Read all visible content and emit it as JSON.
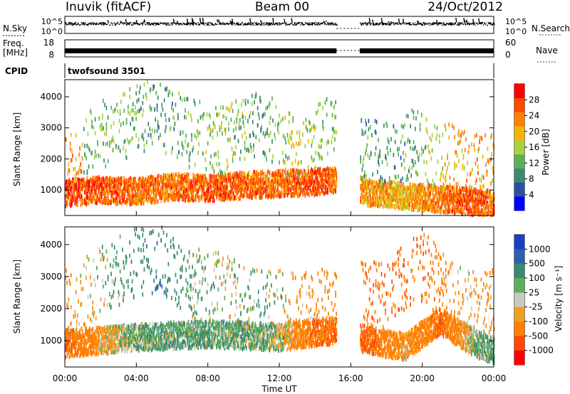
{
  "header": {
    "station": "Inuvik (fitACF)",
    "beam": "Beam 00",
    "date": "24/Oct/2012"
  },
  "strip_panels": {
    "nsky": {
      "label": "N.Sky",
      "left_ticks": [
        "10^5",
        "10^0"
      ],
      "right_label": "N.Search",
      "right_ticks": [
        "10^5",
        "10^0"
      ]
    },
    "freq": {
      "label_line1": "Freq.",
      "label_line2": "[MHz]",
      "left_ticks": [
        "18",
        "8"
      ],
      "right_label": "Nave",
      "right_ticks": [
        "60",
        "0"
      ]
    },
    "cpid": {
      "label": "CPID",
      "value": "twofsound 3501"
    }
  },
  "colors": {
    "power_scale": [
      "#0000ff",
      "#2a4fa3",
      "#3a8a6e",
      "#59b15a",
      "#a8d33c",
      "#f2b500",
      "#ff7f00",
      "#ff4a00",
      "#ff0000"
    ],
    "velocity_scale": [
      "#1a3fc4",
      "#2a5fb0",
      "#3a8a6e",
      "#59b15a",
      "#c8c8c0",
      "#f0a020",
      "#ff7f00",
      "#ff4a00",
      "#ff0000"
    ],
    "data_gap": "#ffffff"
  },
  "chart_data": [
    {
      "type": "heatmap",
      "panel": "power",
      "xlabel": "Time UT",
      "ylabel": "Slant Range [km]",
      "x_ticks": [
        "00:00",
        "04:00",
        "08:00",
        "12:00",
        "16:00",
        "20:00",
        "00:00"
      ],
      "y_ticks": [
        1000,
        2000,
        3000,
        4000
      ],
      "x_range_hours": [
        0,
        24
      ],
      "y_range_km": [
        180,
        4550
      ],
      "data_gap_hours": [
        15.2,
        16.5
      ],
      "colorbar": {
        "label": "Power [dB]",
        "ticks": [
          4,
          8,
          12,
          16,
          20,
          24,
          28
        ],
        "range": [
          0,
          32
        ]
      },
      "series": [
        {
          "name": "strong_band",
          "x": [
            0,
            2,
            4,
            6,
            8,
            10,
            12,
            14,
            15,
            17,
            19,
            21,
            23,
            24
          ],
          "y": [
            900,
            1000,
            950,
            1100,
            1050,
            1150,
            1200,
            1250,
            1300,
            900,
            800,
            700,
            600,
            550
          ],
          "value_db": [
            28,
            26,
            24,
            24,
            26,
            25,
            24,
            27,
            24,
            22,
            20,
            24,
            26,
            24
          ]
        },
        {
          "name": "weak_scatter",
          "x": [
            1,
            3,
            5,
            7,
            9,
            11,
            13,
            14.5,
            17.5,
            19.5,
            21.5,
            23
          ],
          "y": [
            2500,
            3000,
            3500,
            2800,
            2600,
            3200,
            2200,
            3000,
            2100,
            2500,
            2000,
            1700
          ],
          "value_db": [
            12,
            14,
            10,
            12,
            16,
            10,
            18,
            14,
            10,
            12,
            20,
            22
          ]
        }
      ]
    },
    {
      "type": "heatmap",
      "panel": "velocity",
      "xlabel": "Time UT",
      "ylabel": "Slant Range [km]",
      "x_ticks": [
        "00:00",
        "04:00",
        "08:00",
        "12:00",
        "16:00",
        "20:00",
        "00:00"
      ],
      "y_ticks": [
        1000,
        2000,
        3000,
        4000
      ],
      "x_range_hours": [
        0,
        24
      ],
      "y_range_km": [
        180,
        4550
      ],
      "data_gap_hours": [
        15.2,
        16.5
      ],
      "colorbar": {
        "label": "Velocity [m s⁻¹]",
        "ticks": [
          1000,
          500,
          100,
          25,
          -25,
          -100,
          -500,
          -1000
        ]
      },
      "series": [
        {
          "name": "main_echo",
          "x": [
            0,
            2,
            4,
            6,
            8,
            10,
            12,
            14,
            15,
            17,
            19,
            21,
            23,
            24
          ],
          "y": [
            900,
            1000,
            1100,
            1150,
            1200,
            1150,
            1100,
            1250,
            1300,
            1000,
            800,
            1600,
            900,
            700
          ],
          "velocity_ms": [
            -500,
            -100,
            100,
            100,
            100,
            100,
            25,
            -500,
            -500,
            -500,
            -100,
            -500,
            100,
            100
          ]
        },
        {
          "name": "scattered_echo",
          "x": [
            1,
            3,
            5,
            7,
            9,
            11,
            13,
            18,
            20,
            22
          ],
          "y": [
            2500,
            3200,
            3600,
            2800,
            2600,
            2200,
            2000,
            2500,
            3300,
            2200
          ],
          "velocity_ms": [
            -100,
            100,
            500,
            100,
            25,
            100,
            -100,
            -500,
            -500,
            -100
          ]
        }
      ]
    }
  ]
}
